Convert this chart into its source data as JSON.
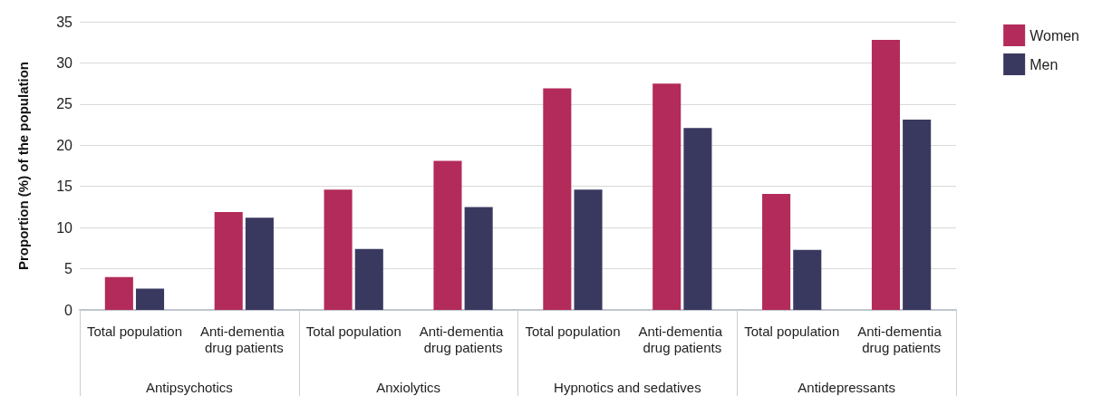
{
  "chart_data": {
    "type": "bar",
    "ylabel": "Proportion (%) of the population",
    "categories": [
      "Total population",
      "Anti-dementia drug patients",
      "Total population",
      "Anti-dementia drug patients",
      "Total population",
      "Anti-dementia drug patients",
      "Total population",
      "Anti-dementia drug patients"
    ],
    "series": [
      {
        "name": "Women",
        "color": "#b32b5a",
        "values": [
          4.0,
          11.9,
          14.6,
          18.1,
          26.9,
          27.5,
          14.1,
          32.8
        ]
      },
      {
        "name": "Men",
        "color": "#393960",
        "values": [
          2.6,
          11.2,
          7.4,
          12.5,
          14.6,
          22.1,
          7.3,
          23.1
        ]
      }
    ],
    "annotations": [
      "Antipsychotics",
      "Anxiolytics",
      "Hypnotics and sedatives",
      "Antidepressants"
    ],
    "ylim": [
      0,
      35
    ],
    "yticks": [
      0,
      5,
      10,
      15,
      20,
      25,
      30,
      35
    ],
    "grid": "y",
    "legend": "top right"
  }
}
